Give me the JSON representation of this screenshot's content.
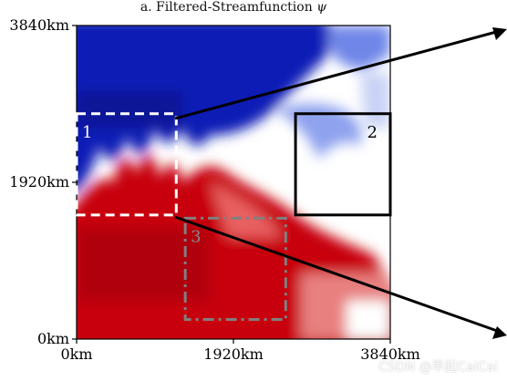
{
  "chart_data": {
    "type": "heatmap",
    "title_prefix": "a. Filtered-Streamfunction ",
    "title_symbol": "ψ",
    "xlim": [
      0,
      3840
    ],
    "ylim": [
      0,
      3840
    ],
    "x_ticks": [
      "0km",
      "1920km",
      "3840km"
    ],
    "y_ticks": [
      "0km",
      "1920km",
      "3840km"
    ],
    "colormap": {
      "negative": "#0a1fb5",
      "zero": "#ffffff",
      "positive": "#c8000a"
    },
    "boxes": [
      {
        "label": "1",
        "x0": 0,
        "y0": 1520,
        "x1": 1220,
        "y1": 2760,
        "style": "dashed",
        "color": "#ffffff"
      },
      {
        "label": "2",
        "x0": 2680,
        "y0": 1520,
        "x1": 3840,
        "y1": 2760,
        "style": "solid",
        "color": "#000000"
      },
      {
        "label": "3",
        "x0": 1330,
        "y0": 240,
        "x1": 2560,
        "y1": 1480,
        "style": "dashdot",
        "color": "#808080"
      }
    ]
  },
  "watermark": "CSDN @早起CaiCai"
}
